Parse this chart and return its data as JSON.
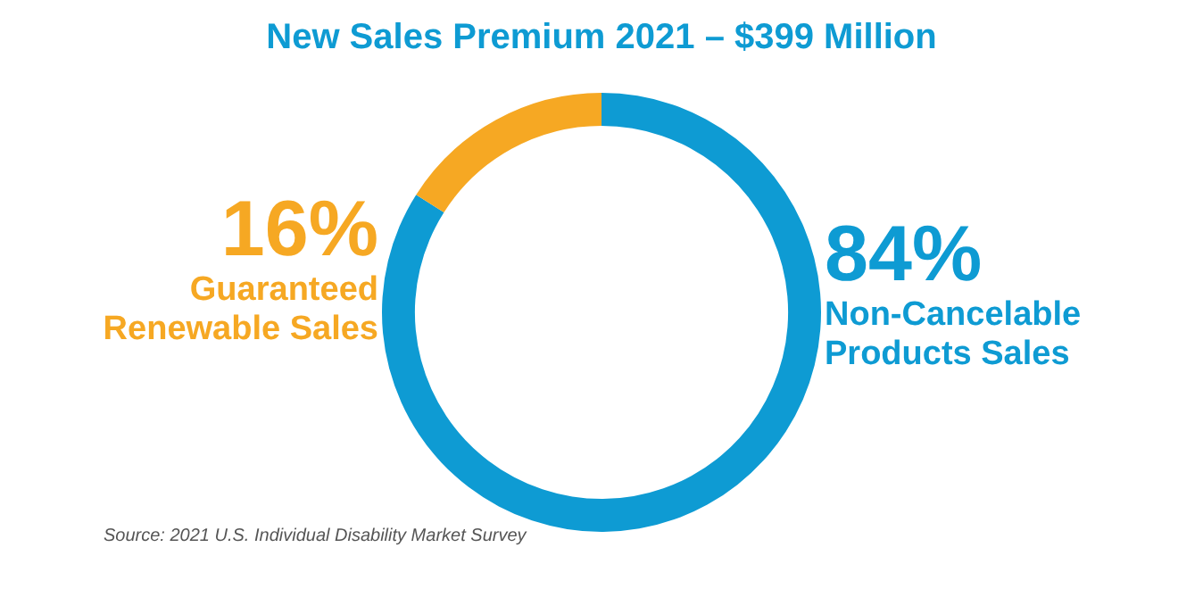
{
  "chart_data": {
    "type": "donut",
    "title": "New Sales Premium 2021 – $399 Million",
    "categories": [
      "Non-Cancelable Products Sales",
      "Guaranteed Renewable Sales"
    ],
    "values": [
      84,
      16
    ],
    "colors": [
      "#0e9bd3",
      "#f6a823"
    ],
    "value_labels": [
      "84%",
      "16%"
    ],
    "legend": false,
    "annotations": [
      "Source: 2021 U.S. Individual Disability Market Survey"
    ]
  }
}
